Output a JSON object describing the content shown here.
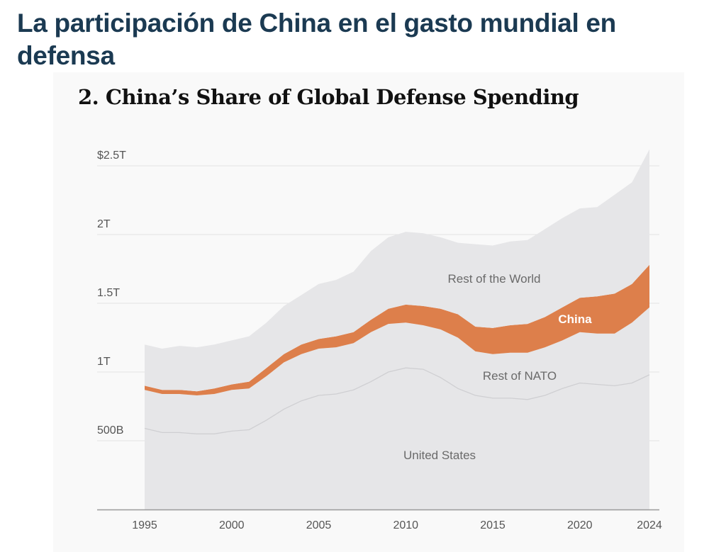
{
  "page": {
    "title": "La participación de China en el gasto mundial en defensa"
  },
  "chart_data": {
    "type": "area",
    "title": "2. China’s Share of Global Defense Spending",
    "xlabel": "",
    "ylabel": "",
    "stacked": true,
    "x": [
      1995,
      1996,
      1997,
      1998,
      1999,
      2000,
      2001,
      2002,
      2003,
      2004,
      2005,
      2006,
      2007,
      2008,
      2009,
      2010,
      2011,
      2012,
      2013,
      2014,
      2015,
      2016,
      2017,
      2018,
      2019,
      2020,
      2021,
      2022,
      2023,
      2024
    ],
    "xticks": [
      1995,
      2000,
      2005,
      2010,
      2015,
      2020,
      2024
    ],
    "xtick_labels": [
      "1995",
      "2000",
      "2005",
      "2010",
      "2015",
      "2020",
      "2024"
    ],
    "ylim": [
      0,
      2.5
    ],
    "yticks": [
      0.5,
      1,
      1.5,
      2,
      2.5
    ],
    "ytick_labels": [
      "500B",
      "1T",
      "1.5T",
      "2T",
      "$2.5T"
    ],
    "units": "trillion USD",
    "grid": true,
    "series": [
      {
        "name": "United States",
        "label": "United States",
        "color": "#e6e6e8",
        "values": [
          0.59,
          0.56,
          0.56,
          0.55,
          0.55,
          0.57,
          0.58,
          0.65,
          0.73,
          0.79,
          0.83,
          0.84,
          0.87,
          0.93,
          1.0,
          1.03,
          1.02,
          0.96,
          0.88,
          0.83,
          0.81,
          0.81,
          0.8,
          0.83,
          0.88,
          0.92,
          0.91,
          0.9,
          0.92,
          0.98
        ]
      },
      {
        "name": "Rest of NATO",
        "label": "Rest of NATO",
        "color": "#e6e6e8",
        "values": [
          0.28,
          0.28,
          0.28,
          0.28,
          0.29,
          0.3,
          0.3,
          0.32,
          0.34,
          0.34,
          0.34,
          0.34,
          0.34,
          0.36,
          0.35,
          0.33,
          0.32,
          0.35,
          0.37,
          0.32,
          0.32,
          0.33,
          0.34,
          0.35,
          0.35,
          0.37,
          0.37,
          0.38,
          0.44,
          0.49
        ]
      },
      {
        "name": "China",
        "label": "China",
        "color": "#dd7f4b",
        "values": [
          0.03,
          0.03,
          0.03,
          0.03,
          0.04,
          0.04,
          0.05,
          0.06,
          0.06,
          0.07,
          0.07,
          0.08,
          0.08,
          0.09,
          0.11,
          0.13,
          0.14,
          0.15,
          0.17,
          0.18,
          0.19,
          0.2,
          0.21,
          0.22,
          0.24,
          0.25,
          0.27,
          0.29,
          0.28,
          0.31
        ]
      },
      {
        "name": "Rest of the World",
        "label": "Rest of the World",
        "color": "#e6e6e8",
        "values": [
          0.3,
          0.3,
          0.32,
          0.32,
          0.32,
          0.32,
          0.33,
          0.33,
          0.35,
          0.36,
          0.4,
          0.41,
          0.44,
          0.5,
          0.52,
          0.53,
          0.53,
          0.52,
          0.52,
          0.6,
          0.6,
          0.61,
          0.61,
          0.64,
          0.65,
          0.65,
          0.65,
          0.72,
          0.74,
          0.84
        ]
      }
    ],
    "annotations": [
      "Rest of the World",
      "China",
      "Rest of NATO",
      "United States"
    ]
  }
}
